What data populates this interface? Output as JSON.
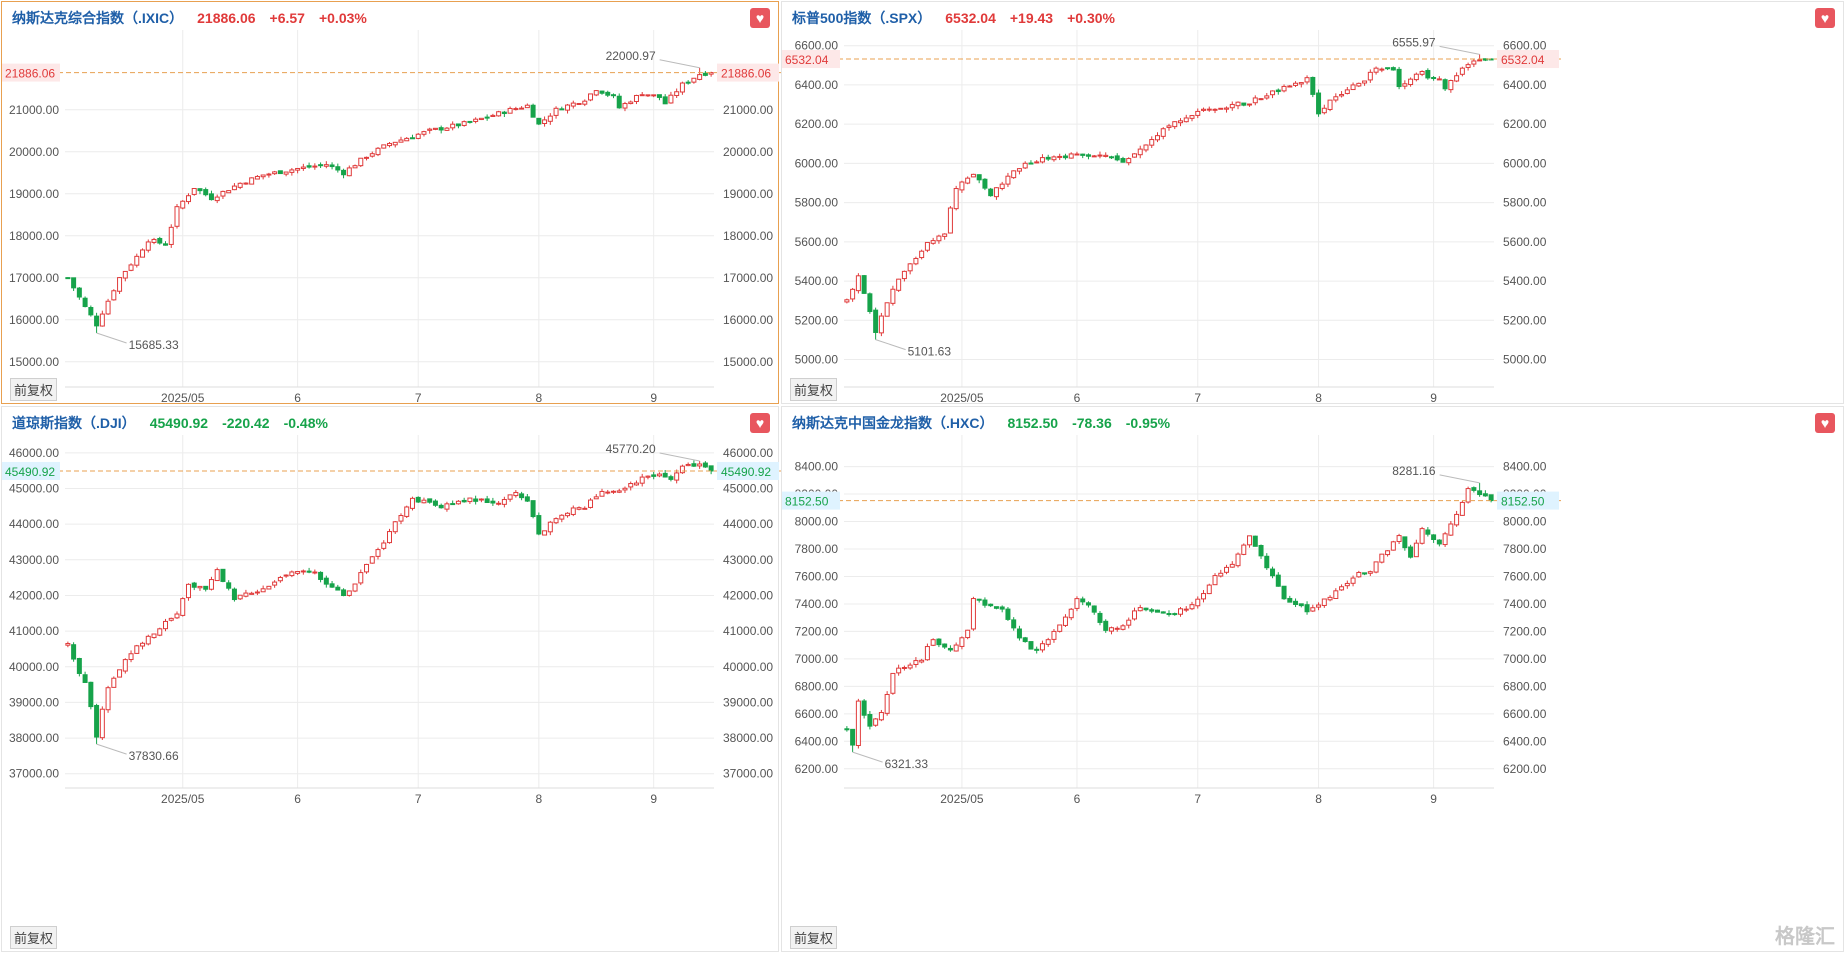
{
  "footer_label": "前复权",
  "watermark": "格隆汇",
  "colors": {
    "up": "#e03a3a",
    "down": "#16a34a",
    "last_line": "#e8a050",
    "grid": "#ececec"
  },
  "x_ticks": [
    {
      "label": "2025/05",
      "index": 20
    },
    {
      "label": "6",
      "index": 40
    },
    {
      "label": "7",
      "index": 61
    },
    {
      "label": "8",
      "index": 82
    },
    {
      "label": "9",
      "index": 102
    }
  ],
  "panels": [
    {
      "name": "纳斯达克综合指数（.IXIC）",
      "price": "21886.06",
      "change": "+6.57",
      "pct": "+0.03%",
      "dir": "up",
      "last_label": "21886.06",
      "high_label": "22000.97",
      "low_label": "15685.33",
      "chart_data": {
        "type": "candlestick",
        "ylim": [
          14400,
          22900
        ],
        "y_ticks": [
          15000,
          16000,
          17000,
          18000,
          19000,
          20000,
          21000
        ],
        "last": 21886.06,
        "high": {
          "value": 22000.97,
          "index": 110
        },
        "low": {
          "value": 15685.33,
          "index": 5
        },
        "anchors": [
          [
            0,
            17000
          ],
          [
            3,
            16300
          ],
          [
            5,
            15900
          ],
          [
            9,
            17000
          ],
          [
            12,
            17500
          ],
          [
            14,
            17900
          ],
          [
            17,
            17800
          ],
          [
            19,
            18650
          ],
          [
            22,
            19150
          ],
          [
            25,
            18900
          ],
          [
            30,
            19250
          ],
          [
            34,
            19450
          ],
          [
            40,
            19600
          ],
          [
            45,
            19700
          ],
          [
            48,
            19500
          ],
          [
            52,
            19900
          ],
          [
            56,
            20200
          ],
          [
            63,
            20500
          ],
          [
            70,
            20700
          ],
          [
            77,
            21000
          ],
          [
            80,
            21100
          ],
          [
            82,
            20650
          ],
          [
            85,
            21000
          ],
          [
            90,
            21250
          ],
          [
            92,
            21500
          ],
          [
            95,
            21300
          ],
          [
            96,
            21050
          ],
          [
            100,
            21400
          ],
          [
            103,
            21300
          ],
          [
            104,
            21150
          ],
          [
            107,
            21600
          ],
          [
            110,
            21850
          ],
          [
            112,
            21890
          ]
        ]
      }
    },
    {
      "name": "标普500指数（.SPX）",
      "price": "6532.04",
      "change": "+19.43",
      "pct": "+0.30%",
      "dir": "up",
      "last_label": "6532.04",
      "high_label": "6555.97",
      "low_label": "5101.63",
      "chart_data": {
        "type": "candlestick",
        "ylim": [
          4860,
          6680
        ],
        "y_ticks": [
          5000,
          5200,
          5400,
          5600,
          5800,
          6000,
          6200,
          6400,
          6600
        ],
        "last": 6532.04,
        "high": {
          "value": 6555.97,
          "index": 110
        },
        "low": {
          "value": 5101.63,
          "index": 5
        },
        "anchors": [
          [
            0,
            5300
          ],
          [
            2,
            5420
          ],
          [
            5,
            5150
          ],
          [
            7,
            5300
          ],
          [
            9,
            5400
          ],
          [
            12,
            5520
          ],
          [
            14,
            5600
          ],
          [
            17,
            5650
          ],
          [
            19,
            5880
          ],
          [
            22,
            5950
          ],
          [
            25,
            5840
          ],
          [
            30,
            5980
          ],
          [
            34,
            6020
          ],
          [
            40,
            6050
          ],
          [
            45,
            6040
          ],
          [
            48,
            6000
          ],
          [
            52,
            6100
          ],
          [
            56,
            6200
          ],
          [
            63,
            6280
          ],
          [
            70,
            6310
          ],
          [
            77,
            6400
          ],
          [
            80,
            6430
          ],
          [
            82,
            6260
          ],
          [
            85,
            6340
          ],
          [
            90,
            6430
          ],
          [
            92,
            6490
          ],
          [
            95,
            6470
          ],
          [
            96,
            6400
          ],
          [
            100,
            6460
          ],
          [
            103,
            6420
          ],
          [
            104,
            6390
          ],
          [
            107,
            6490
          ],
          [
            110,
            6530
          ],
          [
            112,
            6532
          ]
        ]
      }
    },
    {
      "name": "道琼斯指数（.DJI）",
      "price": "45490.92",
      "change": "-220.42",
      "pct": "-0.48%",
      "dir": "down",
      "last_label": "45490.92",
      "high_label": "45770.20",
      "low_label": "37830.66",
      "chart_data": {
        "type": "candlestick",
        "ylim": [
          36600,
          46500
        ],
        "y_ticks": [
          37000,
          38000,
          39000,
          40000,
          41000,
          42000,
          43000,
          44000,
          45000,
          46000
        ],
        "last": 45490.92,
        "high": {
          "value": 45770.2,
          "index": 110
        },
        "low": {
          "value": 37830.66,
          "index": 5
        },
        "anchors": [
          [
            0,
            40600
          ],
          [
            3,
            39500
          ],
          [
            5,
            38200
          ],
          [
            7,
            39400
          ],
          [
            10,
            40200
          ],
          [
            13,
            40700
          ],
          [
            16,
            41100
          ],
          [
            19,
            41500
          ],
          [
            21,
            42300
          ],
          [
            24,
            42200
          ],
          [
            26,
            42700
          ],
          [
            29,
            41900
          ],
          [
            34,
            42200
          ],
          [
            40,
            42700
          ],
          [
            43,
            42600
          ],
          [
            45,
            42300
          ],
          [
            48,
            42000
          ],
          [
            50,
            42300
          ],
          [
            52,
            42900
          ],
          [
            55,
            43500
          ],
          [
            58,
            44300
          ],
          [
            60,
            44700
          ],
          [
            65,
            44500
          ],
          [
            70,
            44700
          ],
          [
            75,
            44600
          ],
          [
            78,
            44900
          ],
          [
            80,
            44700
          ],
          [
            82,
            43700
          ],
          [
            85,
            44200
          ],
          [
            88,
            44400
          ],
          [
            90,
            44500
          ],
          [
            93,
            44900
          ],
          [
            96,
            44900
          ],
          [
            100,
            45300
          ],
          [
            103,
            45400
          ],
          [
            105,
            45200
          ],
          [
            107,
            45600
          ],
          [
            110,
            45700
          ],
          [
            112,
            45490
          ]
        ]
      }
    },
    {
      "name": "纳斯达克中国金龙指数（.HXC）",
      "price": "8152.50",
      "change": "-78.36",
      "pct": "-0.95%",
      "dir": "down",
      "last_label": "8152.50",
      "high_label": "8281.16",
      "low_label": "6321.33",
      "chart_data": {
        "type": "candlestick",
        "ylim": [
          6060,
          8630
        ],
        "y_ticks": [
          6200,
          6400,
          6600,
          6800,
          7000,
          7200,
          7400,
          7600,
          7800,
          8000,
          8200,
          8400
        ],
        "last": 8152.5,
        "high": {
          "value": 8281.16,
          "index": 110
        },
        "low": {
          "value": 6321.33,
          "index": 1
        },
        "anchors": [
          [
            0,
            6500
          ],
          [
            2,
            6700
          ],
          [
            4,
            6500
          ],
          [
            6,
            6600
          ],
          [
            8,
            6900
          ],
          [
            10,
            6950
          ],
          [
            13,
            7000
          ],
          [
            15,
            7150
          ],
          [
            18,
            7050
          ],
          [
            21,
            7200
          ],
          [
            22,
            7450
          ],
          [
            24,
            7400
          ],
          [
            27,
            7350
          ],
          [
            30,
            7150
          ],
          [
            33,
            7050
          ],
          [
            35,
            7150
          ],
          [
            38,
            7300
          ],
          [
            40,
            7450
          ],
          [
            42,
            7400
          ],
          [
            45,
            7200
          ],
          [
            48,
            7250
          ],
          [
            51,
            7380
          ],
          [
            55,
            7320
          ],
          [
            60,
            7380
          ],
          [
            64,
            7600
          ],
          [
            67,
            7700
          ],
          [
            70,
            7900
          ],
          [
            74,
            7600
          ],
          [
            76,
            7450
          ],
          [
            78,
            7400
          ],
          [
            80,
            7350
          ],
          [
            84,
            7450
          ],
          [
            88,
            7600
          ],
          [
            91,
            7650
          ],
          [
            94,
            7800
          ],
          [
            96,
            7900
          ],
          [
            98,
            7750
          ],
          [
            100,
            7950
          ],
          [
            103,
            7850
          ],
          [
            106,
            8050
          ],
          [
            108,
            8250
          ],
          [
            110,
            8200
          ],
          [
            112,
            8152
          ]
        ]
      }
    }
  ]
}
